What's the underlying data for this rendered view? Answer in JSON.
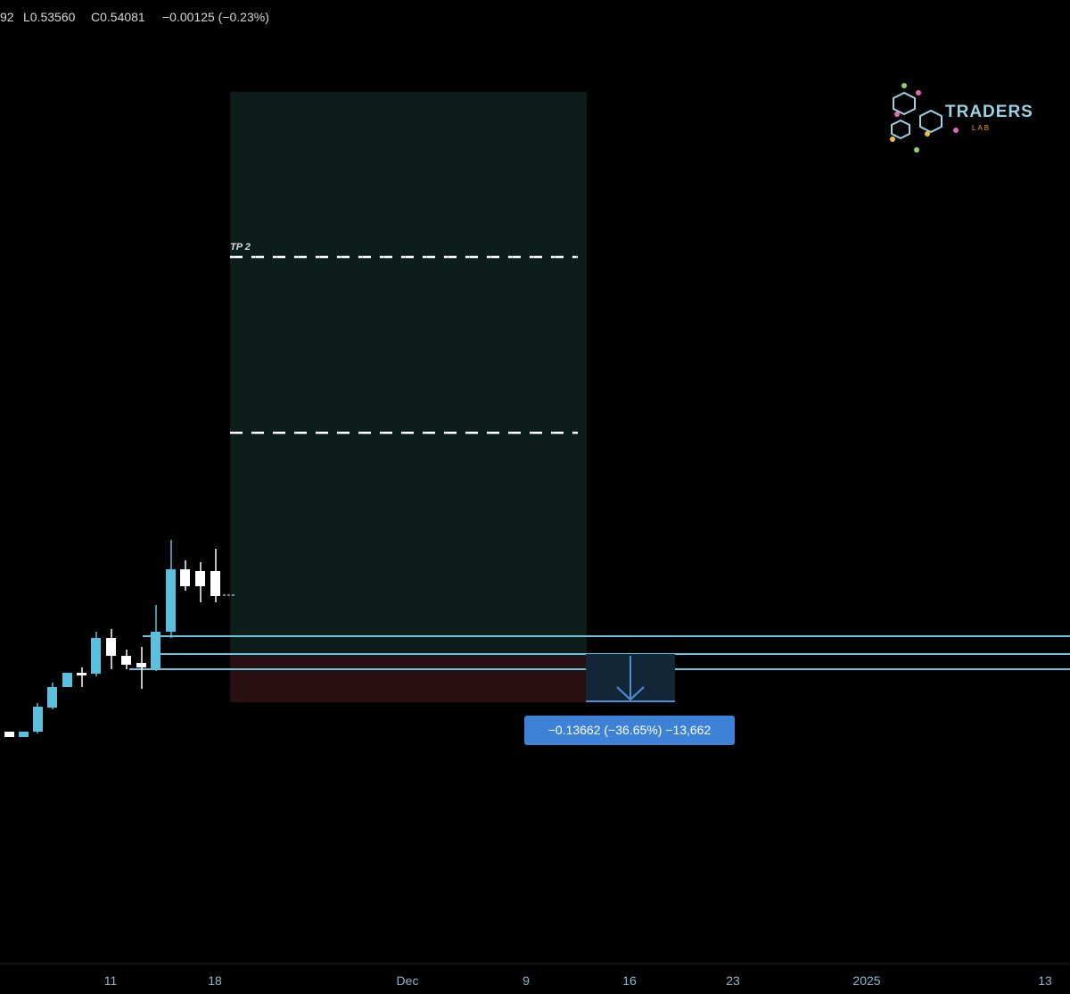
{
  "header": {
    "open_partial": "92",
    "low": "L0.53560",
    "close": "C0.54081",
    "change": "−0.00125 (−0.23%)"
  },
  "logo": {
    "name": "TRADERS",
    "sub": "LAB"
  },
  "drawing": {
    "tp_label": "TP 2",
    "measure_label": "−0.13662 (−36.65%) −13,662"
  },
  "time_axis": [
    "11",
    "18",
    "Dec",
    "9",
    "16",
    "23",
    "2025",
    "13"
  ]
}
